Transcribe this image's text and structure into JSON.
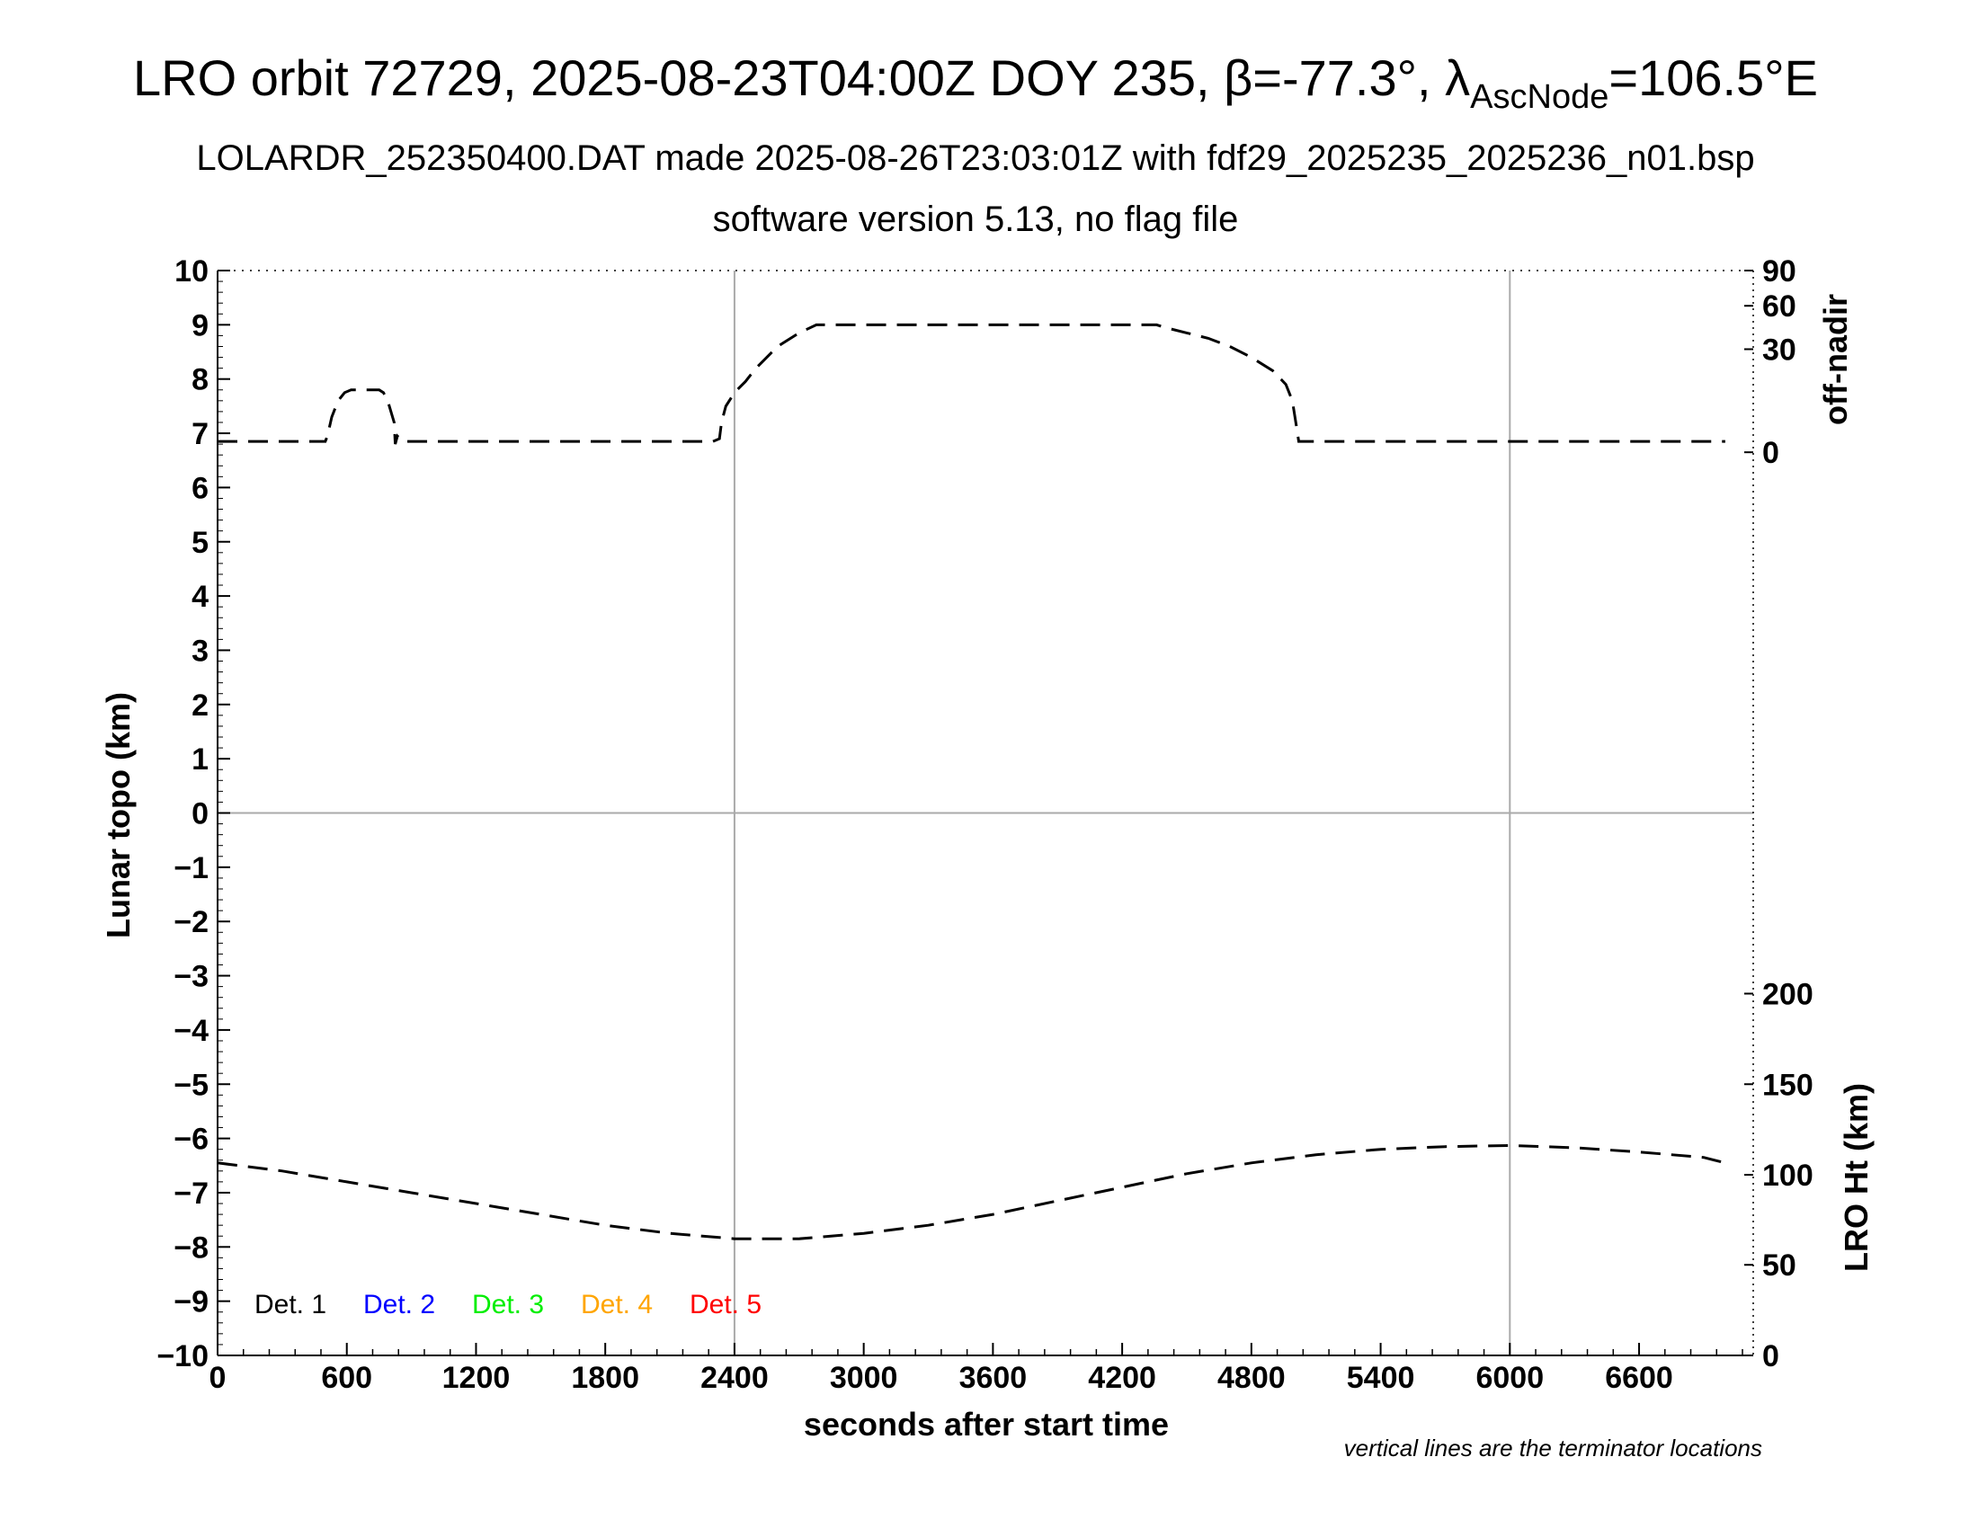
{
  "title": {
    "main": "LRO orbit 72729, 2025-08-23T04:00Z DOY 235, β=-77.3°, λ",
    "sub": "AscNode",
    "suffix": "=106.5°E"
  },
  "subtitle1": "LOLARDR_252350400.DAT made 2025-08-26T23:03:01Z with fdf29_2025235_2025236_n01.bsp",
  "subtitle2": "software version 5.13, no flag file",
  "footnote": "vertical lines are the terminator locations",
  "chart_data": {
    "type": "line",
    "xlabel": "seconds after start time",
    "ylabel_left": "Lunar topo (km)",
    "ylabel_right_top": "off-nadir",
    "ylabel_right_bottom": "LRO Ht (km)",
    "xlim": [
      0,
      7130
    ],
    "ylim_left": [
      -10,
      10
    ],
    "x_ticks": [
      0,
      600,
      1200,
      1800,
      2400,
      3000,
      3600,
      4200,
      4800,
      5400,
      6000,
      6600
    ],
    "y_ticks_left": [
      10,
      9,
      8,
      7,
      6,
      5,
      4,
      3,
      2,
      1,
      0,
      -1,
      -2,
      -3,
      -4,
      -5,
      -6,
      -7,
      -8,
      -9,
      -10
    ],
    "y_tick_labels_left": [
      "10",
      "9",
      "8",
      "7",
      "6",
      "5",
      "4",
      "3",
      "2",
      "1",
      "0",
      "−1",
      "−2",
      "−3",
      "−4",
      "−5",
      "−6",
      "−7",
      "−8",
      "−9",
      "−10"
    ],
    "right_top_ticks": [
      {
        "label": "90",
        "left_y": 10.0
      },
      {
        "label": "60",
        "left_y": 9.35
      },
      {
        "label": "30",
        "left_y": 8.55
      },
      {
        "label": "0",
        "left_y": 6.65
      }
    ],
    "right_bottom_ticks": [
      {
        "label": "200",
        "left_y": -3.33
      },
      {
        "label": "150",
        "left_y": -5.0
      },
      {
        "label": "100",
        "left_y": -6.67
      },
      {
        "label": "50",
        "left_y": -8.33
      },
      {
        "label": "0",
        "left_y": -10.0
      }
    ],
    "terminators_x": [
      2400,
      6000
    ],
    "zero_line_y": 0,
    "grid": false,
    "legend": [
      {
        "label": "Det. 1",
        "color": "#000000"
      },
      {
        "label": "Det. 2",
        "color": "#0000ff"
      },
      {
        "label": "Det. 3",
        "color": "#00ee00"
      },
      {
        "label": "Det. 4",
        "color": "#ffa500"
      },
      {
        "label": "Det. 5",
        "color": "#ff0000"
      }
    ],
    "series": [
      {
        "role": "off-nadir",
        "style": "dashed",
        "color": "#000000",
        "x": [
          0,
          500,
          510,
          530,
          560,
          590,
          620,
          640,
          690,
          750,
          770,
          790,
          820,
          825,
          835,
          860,
          1200,
          1800,
          2300,
          2330,
          2340,
          2360,
          2400,
          2450,
          2500,
          2600,
          2700,
          2780,
          3000,
          3600,
          4200,
          4360,
          4400,
          4500,
          4600,
          4700,
          4800,
          4900,
          4960,
          4990,
          5010,
          5020,
          5040,
          5100,
          5400,
          6000,
          6600,
          7000
        ],
        "y": [
          6.85,
          6.85,
          6.95,
          7.3,
          7.6,
          7.75,
          7.8,
          7.8,
          7.8,
          7.8,
          7.75,
          7.6,
          7.2,
          6.8,
          6.95,
          6.85,
          6.85,
          6.85,
          6.85,
          6.9,
          7.2,
          7.5,
          7.75,
          7.95,
          8.2,
          8.6,
          8.85,
          9.0,
          9.0,
          9.0,
          9.0,
          9.0,
          8.95,
          8.85,
          8.75,
          8.6,
          8.4,
          8.15,
          7.9,
          7.6,
          7.1,
          6.85,
          6.85,
          6.85,
          6.85,
          6.85,
          6.85,
          6.85
        ]
      },
      {
        "role": "LRO Ht",
        "style": "dashed",
        "color": "#000000",
        "x": [
          0,
          300,
          600,
          900,
          1200,
          1500,
          1800,
          2100,
          2400,
          2700,
          3000,
          3300,
          3600,
          3900,
          4200,
          4500,
          4800,
          5100,
          5400,
          5700,
          6000,
          6300,
          6600,
          6900,
          7000
        ],
        "y": [
          -6.45,
          -6.6,
          -6.8,
          -7.0,
          -7.2,
          -7.4,
          -7.6,
          -7.75,
          -7.85,
          -7.85,
          -7.75,
          -7.6,
          -7.4,
          -7.15,
          -6.9,
          -6.65,
          -6.45,
          -6.3,
          -6.2,
          -6.15,
          -6.13,
          -6.17,
          -6.25,
          -6.35,
          -6.45
        ]
      }
    ]
  }
}
